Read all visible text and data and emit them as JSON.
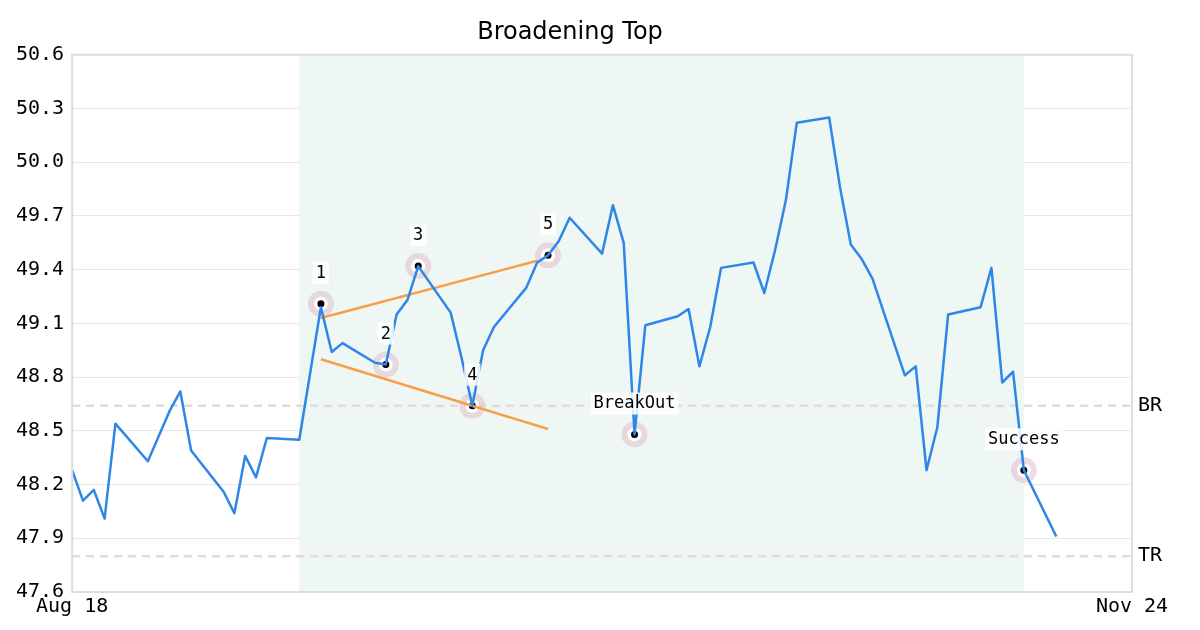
{
  "chart_data": {
    "type": "line",
    "title": "Broadening Top",
    "x": [
      "--08-18",
      "--08-19",
      "--08-20",
      "--08-21",
      "--08-22",
      "--08-25",
      "--08-26",
      "--08-27",
      "--08-28",
      "--08-29",
      "--09-01",
      "--09-02",
      "--09-03",
      "--09-04",
      "--09-05",
      "--09-08",
      "--09-09",
      "--09-10",
      "--09-11",
      "--09-12",
      "--09-15",
      "--09-16",
      "--09-17",
      "--09-18",
      "--09-19",
      "--09-22",
      "--09-23",
      "--09-24",
      "--09-25",
      "--09-26",
      "--09-29",
      "--09-30",
      "--10-01",
      "--10-02",
      "--10-03",
      "--10-06",
      "--10-07",
      "--10-08",
      "--10-09",
      "--10-10",
      "--10-13",
      "--10-14",
      "--10-15",
      "--10-16",
      "--10-17",
      "--10-20",
      "--10-21",
      "--10-22",
      "--10-23",
      "--10-24",
      "--10-27",
      "--10-28",
      "--10-29",
      "--10-30",
      "--10-31",
      "--11-03",
      "--11-04",
      "--11-05",
      "--11-06",
      "--11-07",
      "--11-10",
      "--11-11",
      "--11-12",
      "--11-13",
      "--11-14",
      "--11-17"
    ],
    "xlim": [
      "--08-18",
      "--11-24"
    ],
    "xticks": [
      {
        "value": "--08-18",
        "label": "Aug 18"
      },
      {
        "value": "--11-24",
        "label": "Nov 24"
      }
    ],
    "ylim": [
      47.6,
      50.6
    ],
    "yticks": [
      47.6,
      47.9,
      48.2,
      48.5,
      48.8,
      49.1,
      49.4,
      49.7,
      {
        "value": 50.0,
        "label": "50.0"
      },
      50.3,
      50.6
    ],
    "grid": "y",
    "legend": false,
    "series": [
      {
        "color": "#2e86e8",
        "values": [
          48.28,
          48.11,
          48.17,
          48.01,
          48.54,
          48.33,
          48.47,
          48.61,
          48.72,
          48.39,
          48.16,
          48.04,
          48.36,
          48.24,
          48.46,
          48.45,
          48.82,
          49.19,
          48.94,
          48.99,
          48.88,
          48.87,
          49.15,
          49.23,
          49.42,
          49.16,
          48.91,
          48.64,
          48.95,
          49.08,
          49.3,
          49.44,
          49.48,
          49.56,
          49.69,
          49.49,
          49.76,
          49.55,
          48.48,
          49.09,
          49.14,
          49.18,
          48.86,
          49.08,
          49.41,
          49.44,
          49.27,
          49.51,
          49.79,
          50.22,
          50.25,
          49.86,
          49.54,
          49.46,
          49.35,
          48.81,
          48.86,
          48.28,
          48.52,
          49.15,
          49.19,
          49.41,
          48.77,
          48.83,
          48.28,
          47.91
        ]
      },
      {
        "type": "line",
        "color": "#f5a04a",
        "x": [
          "--09-10",
          "--09-30"
        ],
        "values": [
          49.13,
          49.45
        ]
      },
      {
        "type": "line",
        "color": "#f5a04a",
        "x": [
          "--09-10",
          "--10-01"
        ],
        "values": [
          48.9,
          48.51
        ]
      }
    ],
    "bands": [
      {
        "axis": "x",
        "from": "--09-08",
        "to": "--11-14",
        "color": "#eef7f3"
      }
    ],
    "ref_lines": [
      {
        "axis": "y",
        "value": 48.64,
        "label": "BR",
        "color": "#dddddd",
        "line_style": "dashed"
      },
      {
        "axis": "y",
        "value": 47.8,
        "label": "TR",
        "color": "#dddddd",
        "line_style": "dashed"
      }
    ],
    "annotations": [
      {
        "text": "1",
        "x": "--09-10",
        "y": 49.21
      },
      {
        "text": "2",
        "x": "--09-16",
        "y": 48.87
      },
      {
        "text": "3",
        "x": "--09-19",
        "y": 49.42
      },
      {
        "text": "4",
        "x": "--09-24",
        "y": 48.64
      },
      {
        "text": "5",
        "x": "--10-01",
        "y": 49.48
      },
      {
        "text": "BreakOut",
        "x": "--10-09",
        "y": 48.48
      },
      {
        "text": "Success",
        "x": "--11-14",
        "y": 48.28
      }
    ]
  }
}
